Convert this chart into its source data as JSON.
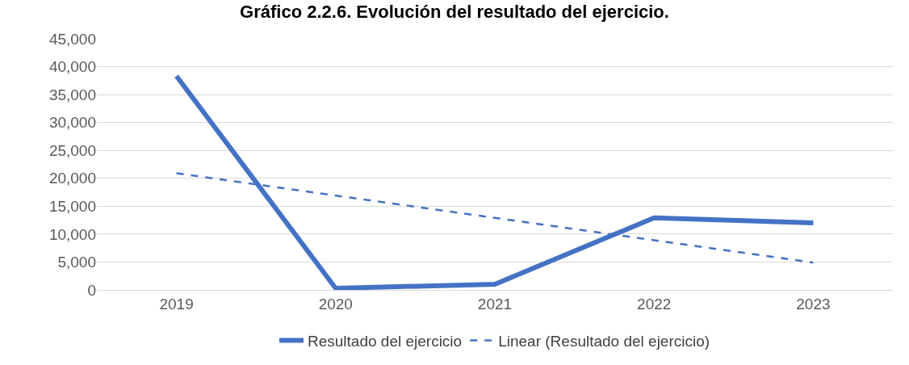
{
  "chart_data": {
    "type": "line",
    "title": "Gráfico 2.2.6. Evolución del resultado del ejercicio.",
    "categories": [
      "2019",
      "2020",
      "2021",
      "2022",
      "2023"
    ],
    "series": [
      {
        "name": "Resultado del ejercicio",
        "color": "#4472c4",
        "values": [
          38300,
          300,
          1000,
          12900,
          12000
        ],
        "line_style": "solid"
      },
      {
        "name": "Linear (Resultado del ejercicio)",
        "color": "#4472c4",
        "values": [
          20900,
          16900,
          12900,
          8900,
          4900
        ],
        "line_style": "dashed"
      }
    ],
    "ylim": [
      0,
      45000
    ],
    "yticks": [
      {
        "value": 0,
        "label": "0"
      },
      {
        "value": 5000,
        "label": "5,000"
      },
      {
        "value": 10000,
        "label": "10,000"
      },
      {
        "value": 15000,
        "label": "15,000"
      },
      {
        "value": 20000,
        "label": "20,000"
      },
      {
        "value": 25000,
        "label": "25,000"
      },
      {
        "value": 30000,
        "label": "30,000"
      },
      {
        "value": 35000,
        "label": "35,000"
      },
      {
        "value": 40000,
        "label": "40,000"
      },
      {
        "value": 45000,
        "label": "45,000"
      }
    ],
    "grid": "y",
    "legend": "bottom",
    "marker": "none"
  }
}
